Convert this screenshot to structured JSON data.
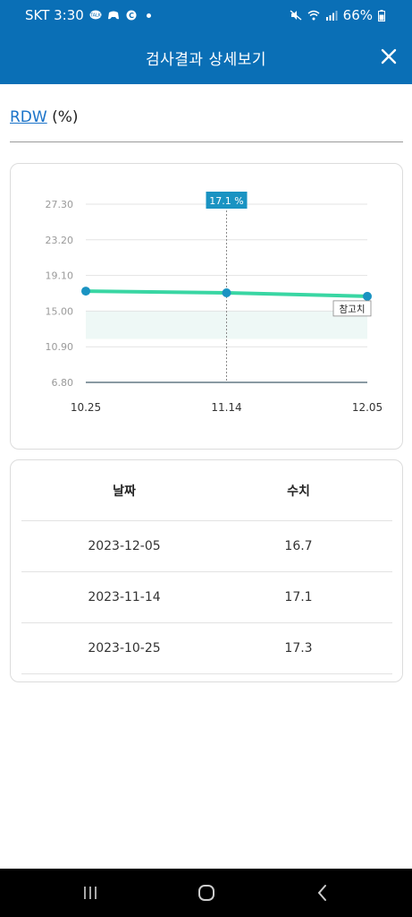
{
  "status_bar": {
    "carrier_time": "SKT 3:30",
    "battery": "66%",
    "icons": [
      "talk-icon",
      "game-icon",
      "c-icon",
      "mute-icon",
      "wifi-icon",
      "signal-icon",
      "battery-icon"
    ]
  },
  "header": {
    "title": "검사결과 상세보기",
    "close_icon": "close-icon"
  },
  "test": {
    "name": "RDW",
    "unit": "(%)"
  },
  "chart_data": {
    "type": "line",
    "categories": [
      "10.25",
      "11.14",
      "12.05"
    ],
    "y_tick_labels": [
      "27.30",
      "23.20",
      "19.10",
      "15.00",
      "10.90",
      "6.80"
    ],
    "series": [
      {
        "values": [
          17.3,
          17.1,
          16.7
        ]
      }
    ],
    "ylim": [
      6.8,
      27.3
    ],
    "reference_range": [
      11.8,
      15.0
    ],
    "reference_label": "참고치",
    "tooltip": {
      "label": "17.1 %",
      "category": "11.14"
    },
    "grid": true,
    "colors": {
      "line": "#39d6a3",
      "point": "#1a93c2",
      "tooltip": "#1a93c2",
      "band": "#eef8f6"
    }
  },
  "table": {
    "headers": {
      "date": "날짜",
      "value": "수치"
    },
    "rows": [
      {
        "date": "2023-12-05",
        "value": "16.7"
      },
      {
        "date": "2023-11-14",
        "value": "17.1"
      },
      {
        "date": "2023-10-25",
        "value": "17.3"
      }
    ]
  },
  "nav": {
    "icons": [
      "recent-apps-icon",
      "home-icon",
      "back-icon"
    ]
  }
}
